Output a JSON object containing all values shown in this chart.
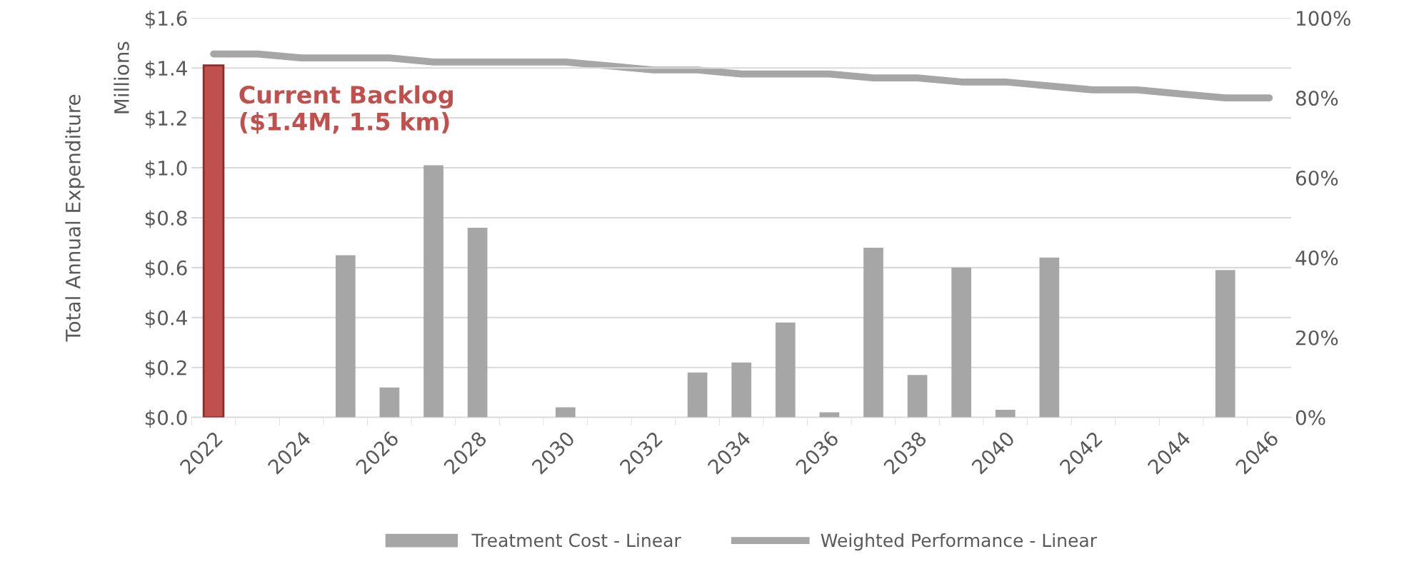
{
  "chart_data": {
    "type": "bar",
    "ylabel": "Total Annual Expenditure",
    "categories": [
      "2022",
      null,
      "2024",
      null,
      "2026",
      null,
      "2028",
      null,
      "2030",
      null,
      "2032",
      null,
      "2034",
      null,
      "2036",
      null,
      "2038",
      null,
      "2040",
      null,
      "2042",
      null,
      "2044",
      null,
      "2046"
    ],
    "series": [
      {
        "name": "Treatment Cost - Linear",
        "color": "#a6a6a6",
        "colors": [
          "#c0504d",
          "#a6a6a6",
          "#a6a6a6",
          "#a6a6a6",
          "#a6a6a6",
          "#a6a6a6",
          "#a6a6a6",
          "#a6a6a6",
          "#a6a6a6",
          "#a6a6a6",
          "#a6a6a6",
          "#a6a6a6",
          "#a6a6a6",
          "#a6a6a6",
          "#a6a6a6",
          "#a6a6a6",
          "#a6a6a6",
          "#a6a6a6",
          "#a6a6a6",
          "#a6a6a6",
          "#a6a6a6",
          "#a6a6a6",
          "#a6a6a6",
          "#a6a6a6",
          "#a6a6a6"
        ],
        "values": [
          1.41,
          0,
          0,
          0.65,
          0.12,
          1.01,
          0.76,
          0,
          0.04,
          0,
          0,
          0.18,
          0.22,
          0.38,
          0.02,
          0.68,
          0.17,
          0.6,
          0.03,
          0.64,
          0,
          0,
          0,
          0.59,
          0
        ]
      },
      {
        "name": "Weighted Performance - Linear",
        "type": "line",
        "axis": "y2",
        "color": "#a6a6a6",
        "values": [
          91,
          91,
          90,
          90,
          90,
          89,
          89,
          89,
          89,
          88,
          87,
          87,
          86,
          86,
          86,
          85,
          85,
          84,
          84,
          83,
          82,
          82,
          81,
          80,
          80
        ]
      }
    ],
    "ylim": [
      0,
      1.6
    ],
    "yticks": [
      {
        "value": 0,
        "label": "$0.0"
      },
      {
        "value": 0.2,
        "label": "$0.2"
      },
      {
        "value": 0.4,
        "label": "$0.4"
      },
      {
        "value": 0.6,
        "label": "$0.6"
      },
      {
        "value": 0.8,
        "label": "$0.8"
      },
      {
        "value": 1.0,
        "label": "$1.0"
      },
      {
        "value": 1.2,
        "label": "$1.2"
      },
      {
        "value": 1.4,
        "label": "$1.4"
      },
      {
        "value": 1.6,
        "label": "$1.6"
      }
    ],
    "y2lim": [
      0,
      100
    ],
    "y2ticks": [
      {
        "value": 0,
        "label": "0%"
      },
      {
        "value": 20,
        "label": "20%"
      },
      {
        "value": 40,
        "label": "40%"
      },
      {
        "value": 60,
        "label": "60%"
      },
      {
        "value": 80,
        "label": "80%"
      },
      {
        "value": 100,
        "label": "100%"
      }
    ],
    "annotations": [
      {
        "text": "Current Backlog\n($1.4M, 1.5 km)",
        "x": "2022",
        "y": 1.41
      },
      "Millions"
    ],
    "grid": "y",
    "legend": "bottom"
  }
}
